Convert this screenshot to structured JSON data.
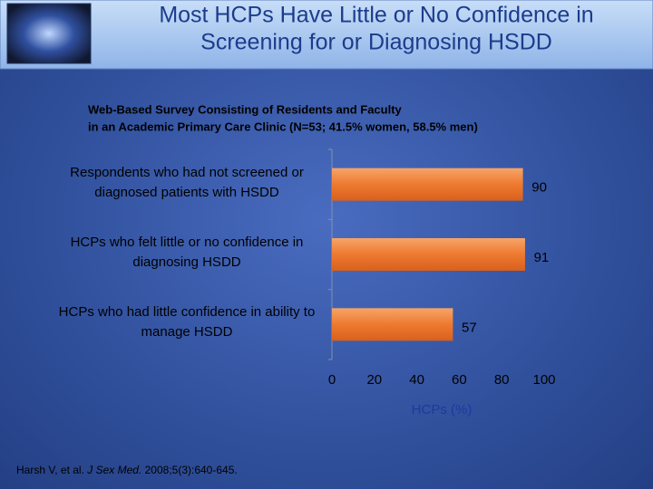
{
  "chart_data": {
    "type": "bar",
    "orientation": "horizontal",
    "title": [
      "Most HCPs Have Little or No Confidence in",
      "Screening for or Diagnosing HSDD"
    ],
    "subtitle": [
      "Web-Based Survey Consisting of Residents and Faculty",
      "in an Academic Primary Care Clinic (N=53; 41.5% women, 58.5% men)"
    ],
    "categories": [
      "Respondents who had not screened or diagnosed patients with HSDD",
      "HCPs who felt little or no confidence in diagnosing HSDD",
      "HCPs who had little confidence in ability to manage HSDD"
    ],
    "values": [
      90,
      91,
      57
    ],
    "color": "#ee7a30",
    "xlabel": "HCPs (%)",
    "xlim": [
      0,
      100
    ],
    "xticks": [
      0,
      20,
      40,
      60,
      80,
      100
    ],
    "citation": [
      "Harsh V, et al. ",
      "J Sex Med.",
      " 2008;5(3):640-645."
    ]
  }
}
